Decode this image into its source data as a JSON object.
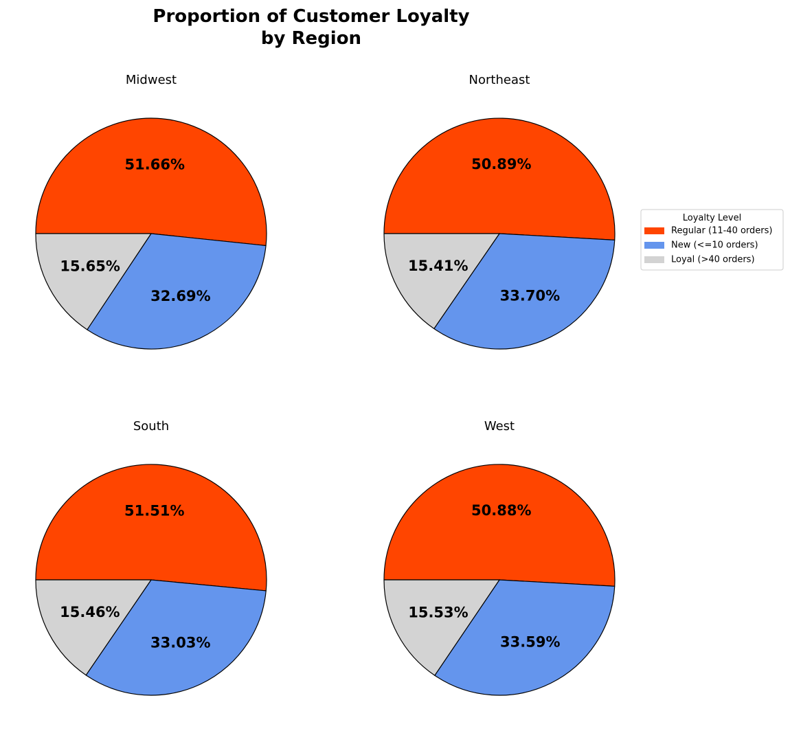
{
  "chart_data": {
    "type": "pie",
    "title": "Proportion of Customer Loyalty\nby Region",
    "legend": {
      "title": "Loyalty Level",
      "placement": "right"
    },
    "categories": [
      "Regular (11-40 orders)",
      "New (<=10 orders)",
      "Loyal (>40 orders)"
    ],
    "colors": {
      "Regular (11-40 orders)": "#ff4500",
      "New (<=10 orders)": "#6495ed",
      "Loyal (>40 orders)": "#d3d3d3"
    },
    "start_angle_deg": 180,
    "direction": "clockwise",
    "pies": [
      {
        "region": "Midwest",
        "slices": [
          {
            "label": "Regular (11-40 orders)",
            "value": 51.66,
            "text": "51.66%"
          },
          {
            "label": "New (<=10 orders)",
            "value": 32.69,
            "text": "32.69%"
          },
          {
            "label": "Loyal (>40 orders)",
            "value": 15.65,
            "text": "15.65%"
          }
        ]
      },
      {
        "region": "Northeast",
        "slices": [
          {
            "label": "Regular (11-40 orders)",
            "value": 50.89,
            "text": "50.89%"
          },
          {
            "label": "New (<=10 orders)",
            "value": 33.7,
            "text": "33.70%"
          },
          {
            "label": "Loyal (>40 orders)",
            "value": 15.41,
            "text": "15.41%"
          }
        ]
      },
      {
        "region": "South",
        "slices": [
          {
            "label": "Regular (11-40 orders)",
            "value": 51.51,
            "text": "51.51%"
          },
          {
            "label": "New (<=10 orders)",
            "value": 33.03,
            "text": "33.03%"
          },
          {
            "label": "Loyal (>40 orders)",
            "value": 15.46,
            "text": "15.46%"
          }
        ]
      },
      {
        "region": "West",
        "slices": [
          {
            "label": "Regular (11-40 orders)",
            "value": 50.88,
            "text": "50.88%"
          },
          {
            "label": "New (<=10 orders)",
            "value": 33.59,
            "text": "33.59%"
          },
          {
            "label": "Loyal (>40 orders)",
            "value": 15.53,
            "text": "15.53%"
          }
        ]
      }
    ]
  }
}
